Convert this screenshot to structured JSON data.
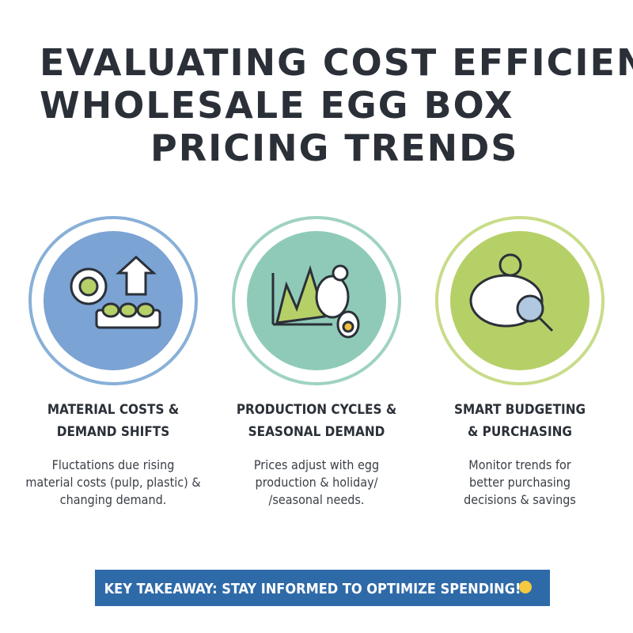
{
  "header": {
    "title_lines": [
      "EVALUATING COST EFFICIENCY:",
      "WHOLESALE EGG BOX",
      "PRICING TRENDS"
    ]
  },
  "cards": [
    {
      "title_lines": [
        "MATERIAL COSTS &",
        "DEMAND SHIFTS"
      ],
      "text_lines": [
        "Fluctations due rising",
        "material costs (pulp, plastic) &",
        "changing demand."
      ]
    },
    {
      "title_lines": [
        "PRODUCTION CYCLES &",
        "SEASONAL DEMAND"
      ],
      "text_lines": [
        "Prices adjust with egg",
        "production & holiday/",
        "/seasonal needs."
      ]
    },
    {
      "title_lines": [
        "SMART BUDGETING",
        "& PURCHASING"
      ],
      "text_lines": [
        "Monitor trends for",
        "better purchasing",
        "decisions & savings"
      ]
    }
  ],
  "footer": {
    "banner": "KEY TAKEAWAY: STAY INFORMED TO OPTIMIZE SPENDING!"
  }
}
